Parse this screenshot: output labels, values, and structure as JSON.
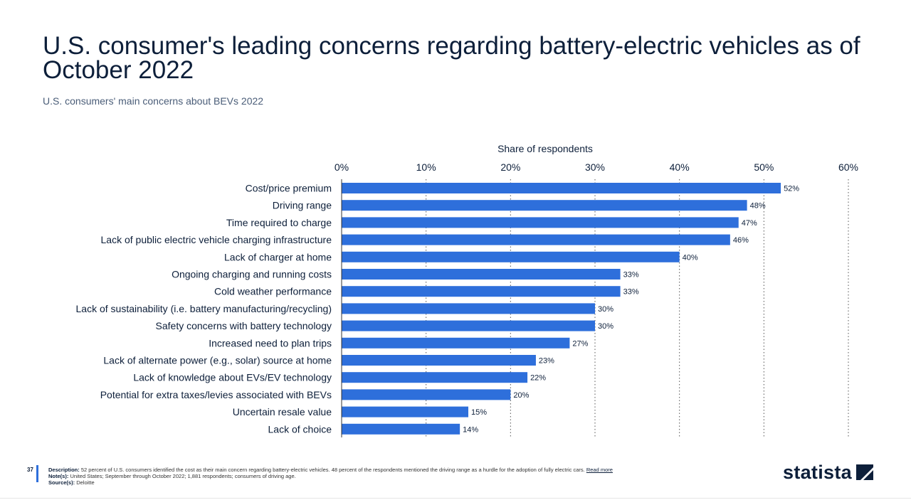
{
  "header": {
    "title": "U.S. consumer's leading concerns regarding battery-electric vehicles as of October 2022",
    "subtitle": "U.S. consumers' main concerns about BEVs 2022"
  },
  "chart_data": {
    "type": "bar",
    "orientation": "horizontal",
    "xlabel": "Share of respondents",
    "xlim": [
      0,
      60
    ],
    "x_ticks": [
      0,
      10,
      20,
      30,
      40,
      50,
      60
    ],
    "x_tick_labels": [
      "0%",
      "10%",
      "20%",
      "30%",
      "40%",
      "50%",
      "60%"
    ],
    "grid": "vertical dotted",
    "bar_color": "#2e6fdb",
    "categories": [
      "Cost/price premium",
      "Driving range",
      "Time required to charge",
      "Lack of public electric vehicle charging infrastructure",
      "Lack of charger at home",
      "Ongoing charging and running costs",
      "Cold weather performance",
      "Lack of sustainability (i.e. battery manufacturing/recycling)",
      "Safety concerns with battery technology",
      "Increased need to plan trips",
      "Lack of alternate power (e.g., solar) source at home",
      "Lack of knowledge about EVs/EV technology",
      "Potential for extra taxes/levies associated with BEVs",
      "Uncertain resale value",
      "Lack of choice"
    ],
    "values": [
      52,
      48,
      47,
      46,
      40,
      33,
      33,
      30,
      30,
      27,
      23,
      22,
      20,
      15,
      14
    ],
    "value_labels": [
      "52%",
      "48%",
      "47%",
      "46%",
      "40%",
      "33%",
      "33%",
      "30%",
      "30%",
      "27%",
      "23%",
      "22%",
      "20%",
      "15%",
      "14%"
    ]
  },
  "footer": {
    "page_number": "37",
    "description_label": "Description:",
    "description_text": "52 percent of U.S. consumers identified the cost as their main concern regarding battery-electric vehicles. 48 percent of the respondents mentioned the driving range as a hurdle for the adoption of fully electric cars.",
    "read_more": "Read more",
    "notes_label": "Note(s):",
    "notes_text": "United States; September through October 2022; 1,881 respondents; consumers of driving age.",
    "source_label": "Source(s):",
    "source_text": "Deloitte"
  },
  "logo": {
    "text": "statista",
    "icon": "statista-logo-icon"
  },
  "colors": {
    "accent": "#2e6fdb",
    "text": "#0d1f3a"
  }
}
